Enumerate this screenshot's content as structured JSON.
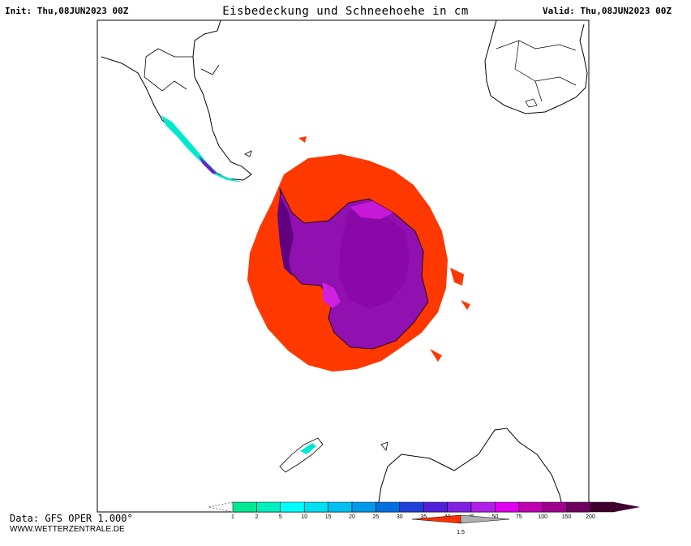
{
  "header": {
    "init": "Init: Thu,08JUN2023 00Z",
    "title": "Eisbedeckung und Schneehoehe in cm",
    "valid": "Valid: Thu,08JUN2023 00Z"
  },
  "footer": {
    "data_source": "Data: GFS OPER 1.000°",
    "website": "WWW.WETTERZENTRALE.DE"
  },
  "legend": {
    "snow_ticks": [
      "1",
      "2",
      "5",
      "10",
      "15",
      "20",
      "25",
      "30",
      "35",
      "40",
      "45",
      "50",
      "75",
      "100",
      "150",
      "200"
    ],
    "snow_colors": [
      "#00e890",
      "#00f0c0",
      "#00ffff",
      "#00e0f0",
      "#00c0f0",
      "#0098e8",
      "#0070e0",
      "#2040d8",
      "#5020d8",
      "#8020e0",
      "#b020e8",
      "#e000f0",
      "#c000b0",
      "#a00090",
      "#700060",
      "#400030"
    ],
    "ice_label": "1.5",
    "ice_colors": [
      "#ff3000",
      "#b0b0b0"
    ]
  },
  "colors": {
    "sea_ice": "#ff3800",
    "ice_sheet": "#9010b0",
    "ice_sheet_dark": "#600080",
    "ice_highlight": "#d020e0",
    "coast": "#000000"
  }
}
